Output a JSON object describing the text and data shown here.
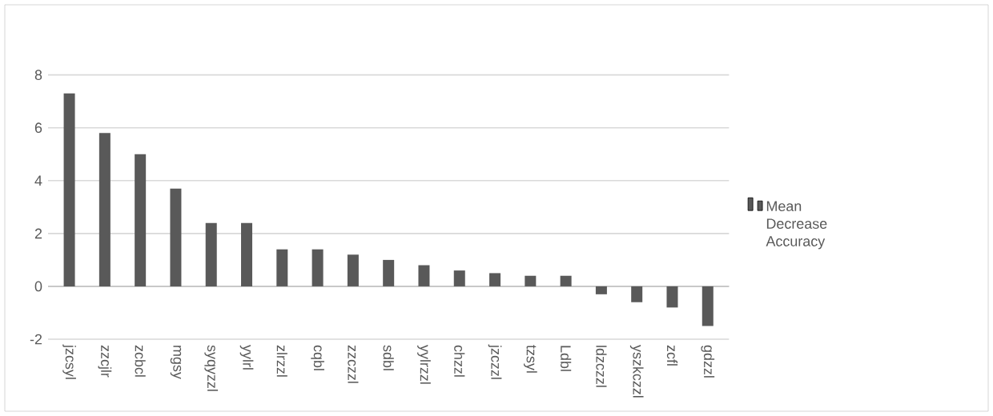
{
  "chart_data": {
    "type": "bar",
    "categories": [
      "jzcsyl",
      "zzcjlr",
      "zcbcl",
      "mgsy",
      "syqyzzl",
      "yylrl",
      "zlrzzl",
      "cqbl",
      "zzczzl",
      "sdbl",
      "yylrzzl",
      "chzzl",
      "jzczzl",
      "tzsyl",
      "Ldbl",
      "ldzczzl",
      "yszkczzl",
      "zcfl",
      "gdzzl"
    ],
    "series": [
      {
        "name": "Mean Decrease Accuracy",
        "color": "#595959",
        "values": [
          7.3,
          5.8,
          5.0,
          3.7,
          2.4,
          2.4,
          1.4,
          1.4,
          1.2,
          1.0,
          0.8,
          0.6,
          0.5,
          0.4,
          0.4,
          -0.3,
          -0.6,
          -0.8,
          -1.5
        ]
      }
    ],
    "ylim": [
      -2,
      8
    ],
    "yticks": [
      -2,
      0,
      2,
      4,
      6,
      8
    ],
    "grid": "y",
    "legend": "right"
  }
}
